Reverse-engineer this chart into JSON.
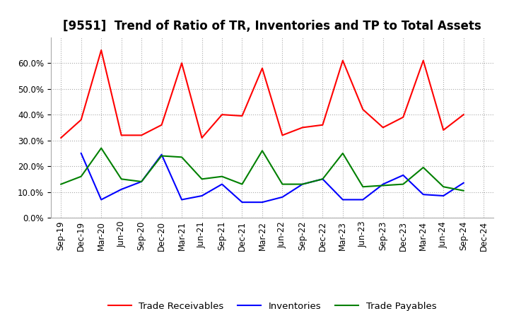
{
  "title": "[9551]  Trend of Ratio of TR, Inventories and TP to Total Assets",
  "x_labels": [
    "Sep-19",
    "Dec-19",
    "Mar-20",
    "Jun-20",
    "Sep-20",
    "Dec-20",
    "Mar-21",
    "Jun-21",
    "Sep-21",
    "Dec-21",
    "Mar-22",
    "Jun-22",
    "Sep-22",
    "Dec-22",
    "Mar-23",
    "Jun-23",
    "Sep-23",
    "Dec-23",
    "Mar-24",
    "Jun-24",
    "Sep-24",
    "Dec-24"
  ],
  "trade_receivables": [
    31.0,
    38.0,
    65.0,
    32.0,
    32.0,
    36.0,
    60.0,
    31.0,
    40.0,
    39.5,
    58.0,
    32.0,
    35.0,
    36.0,
    61.0,
    42.0,
    35.0,
    39.0,
    61.0,
    34.0,
    40.0,
    null
  ],
  "inventories": [
    null,
    25.0,
    7.0,
    11.0,
    14.0,
    24.5,
    7.0,
    8.5,
    13.0,
    6.0,
    6.0,
    8.0,
    13.0,
    15.0,
    7.0,
    7.0,
    13.0,
    16.5,
    9.0,
    8.5,
    13.5,
    null
  ],
  "trade_payables": [
    13.0,
    16.0,
    27.0,
    15.0,
    14.0,
    24.0,
    23.5,
    15.0,
    16.0,
    13.0,
    26.0,
    13.0,
    13.0,
    15.0,
    25.0,
    12.0,
    12.5,
    13.0,
    19.5,
    12.0,
    10.5,
    null
  ],
  "ylim": [
    0,
    70
  ],
  "yticks": [
    0,
    10,
    20,
    30,
    40,
    50,
    60
  ],
  "line_colors": {
    "trade_receivables": "#FF0000",
    "inventories": "#0000FF",
    "trade_payables": "#008000"
  },
  "legend_labels": [
    "Trade Receivables",
    "Inventories",
    "Trade Payables"
  ],
  "background_color": "#FFFFFF",
  "plot_bg_color": "#FFFFFF",
  "grid_color": "#AAAAAA",
  "title_fontsize": 12,
  "tick_fontsize": 8.5
}
